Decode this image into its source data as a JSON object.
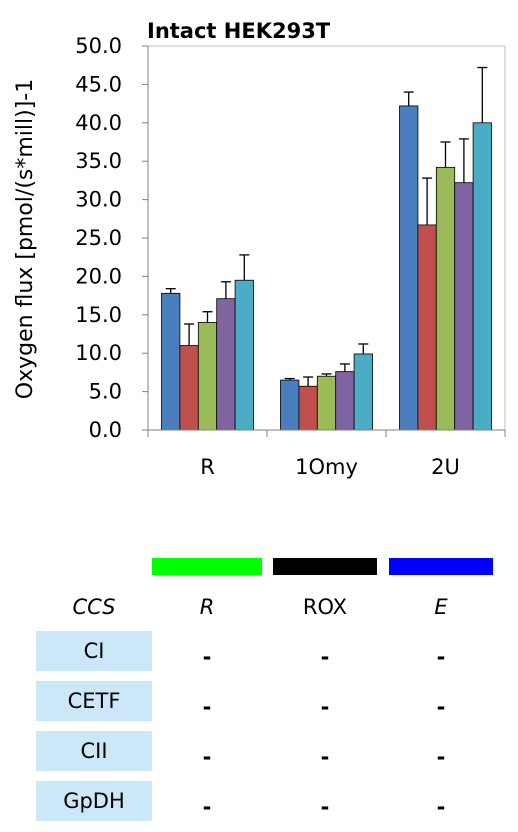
{
  "chart_data": {
    "type": "bar",
    "title": "Intact HEK293T",
    "ylabel": "Oxygen flux [pmol/(s*mill)]-1",
    "xlabel": "",
    "ylim": [
      0,
      50
    ],
    "yticks": [
      "0.0",
      "5.0",
      "10.0",
      "15.0",
      "20.0",
      "25.0",
      "30.0",
      "35.0",
      "40.0",
      "45.0",
      "50.0"
    ],
    "categories": [
      "R",
      "1Omy",
      "2U"
    ],
    "series": [
      {
        "color": "#4a7ebf",
        "values": [
          17.8,
          6.5,
          42.2
        ],
        "errors": [
          0.6,
          0.2,
          1.8
        ]
      },
      {
        "color": "#c0504d",
        "values": [
          11.0,
          5.7,
          26.7
        ],
        "errors": [
          2.8,
          1.2,
          6.1
        ]
      },
      {
        "color": "#9bbb59",
        "values": [
          14.0,
          7.0,
          34.2
        ],
        "errors": [
          1.4,
          0.3,
          3.3
        ]
      },
      {
        "color": "#8064a2",
        "values": [
          17.1,
          7.6,
          32.2
        ],
        "errors": [
          2.2,
          1.0,
          5.7
        ]
      },
      {
        "color": "#4bacc6",
        "values": [
          19.5,
          9.9,
          40.0
        ],
        "errors": [
          3.3,
          1.3,
          7.2
        ]
      }
    ]
  },
  "table": {
    "legend_colors": [
      "#00ff00",
      "#000000",
      "#0000ff"
    ],
    "header": [
      "CCS",
      "R",
      "ROX",
      "E"
    ],
    "rows": [
      {
        "label": "CI",
        "cells": [
          "-",
          "-",
          "-"
        ]
      },
      {
        "label": "CETF",
        "cells": [
          "-",
          "-",
          "-"
        ]
      },
      {
        "label": "CII",
        "cells": [
          "-",
          "-",
          "-"
        ]
      },
      {
        "label": "GpDH",
        "cells": [
          "-",
          "-",
          "-"
        ]
      }
    ]
  }
}
